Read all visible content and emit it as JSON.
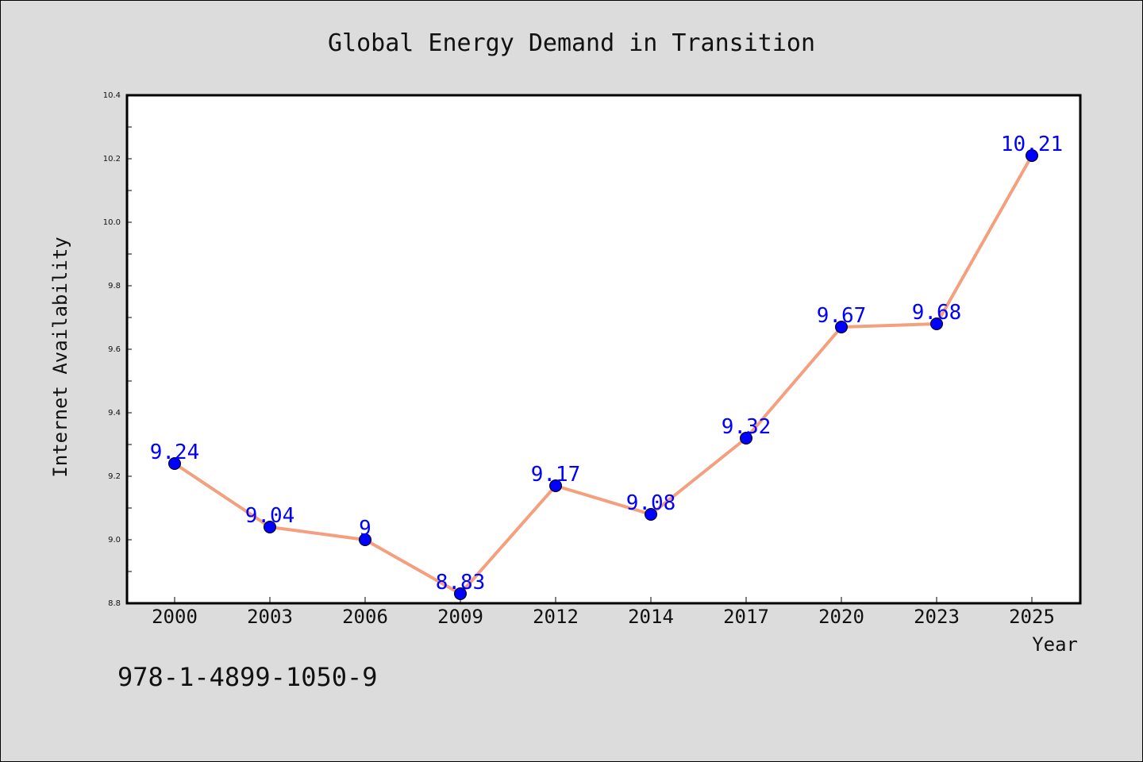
{
  "chart_data": {
    "type": "line",
    "title": "Global Energy Demand in Transition",
    "xlabel": "Year",
    "ylabel": "Internet Availability",
    "categories": [
      "2000",
      "2003",
      "2006",
      "2009",
      "2012",
      "2014",
      "2017",
      "2020",
      "2023",
      "2025"
    ],
    "series": [
      {
        "values": [
          9.24,
          9.04,
          9.0,
          8.83,
          9.17,
          9.08,
          9.32,
          9.67,
          9.68,
          10.21
        ],
        "labels": [
          "9.24",
          "9.04",
          "9",
          "8.83",
          "9.17",
          "9.08",
          "9.32",
          "9.67",
          "9.68",
          "10.21"
        ],
        "line_color": "#f4a07e",
        "marker_color": "#0000ff"
      }
    ],
    "ylim": [
      8.8,
      10.4
    ],
    "yticks": [
      "8.8",
      "9.0",
      "9.2",
      "9.4",
      "9.6",
      "9.8",
      "10.0",
      "10.2",
      "10.4"
    ],
    "grid": false,
    "label_color": "#0000ff"
  },
  "footer": {
    "isbn": "978-1-4899-1050-9"
  },
  "colors": {
    "background": "#dcdcdc",
    "plot_background": "#ffffff"
  }
}
